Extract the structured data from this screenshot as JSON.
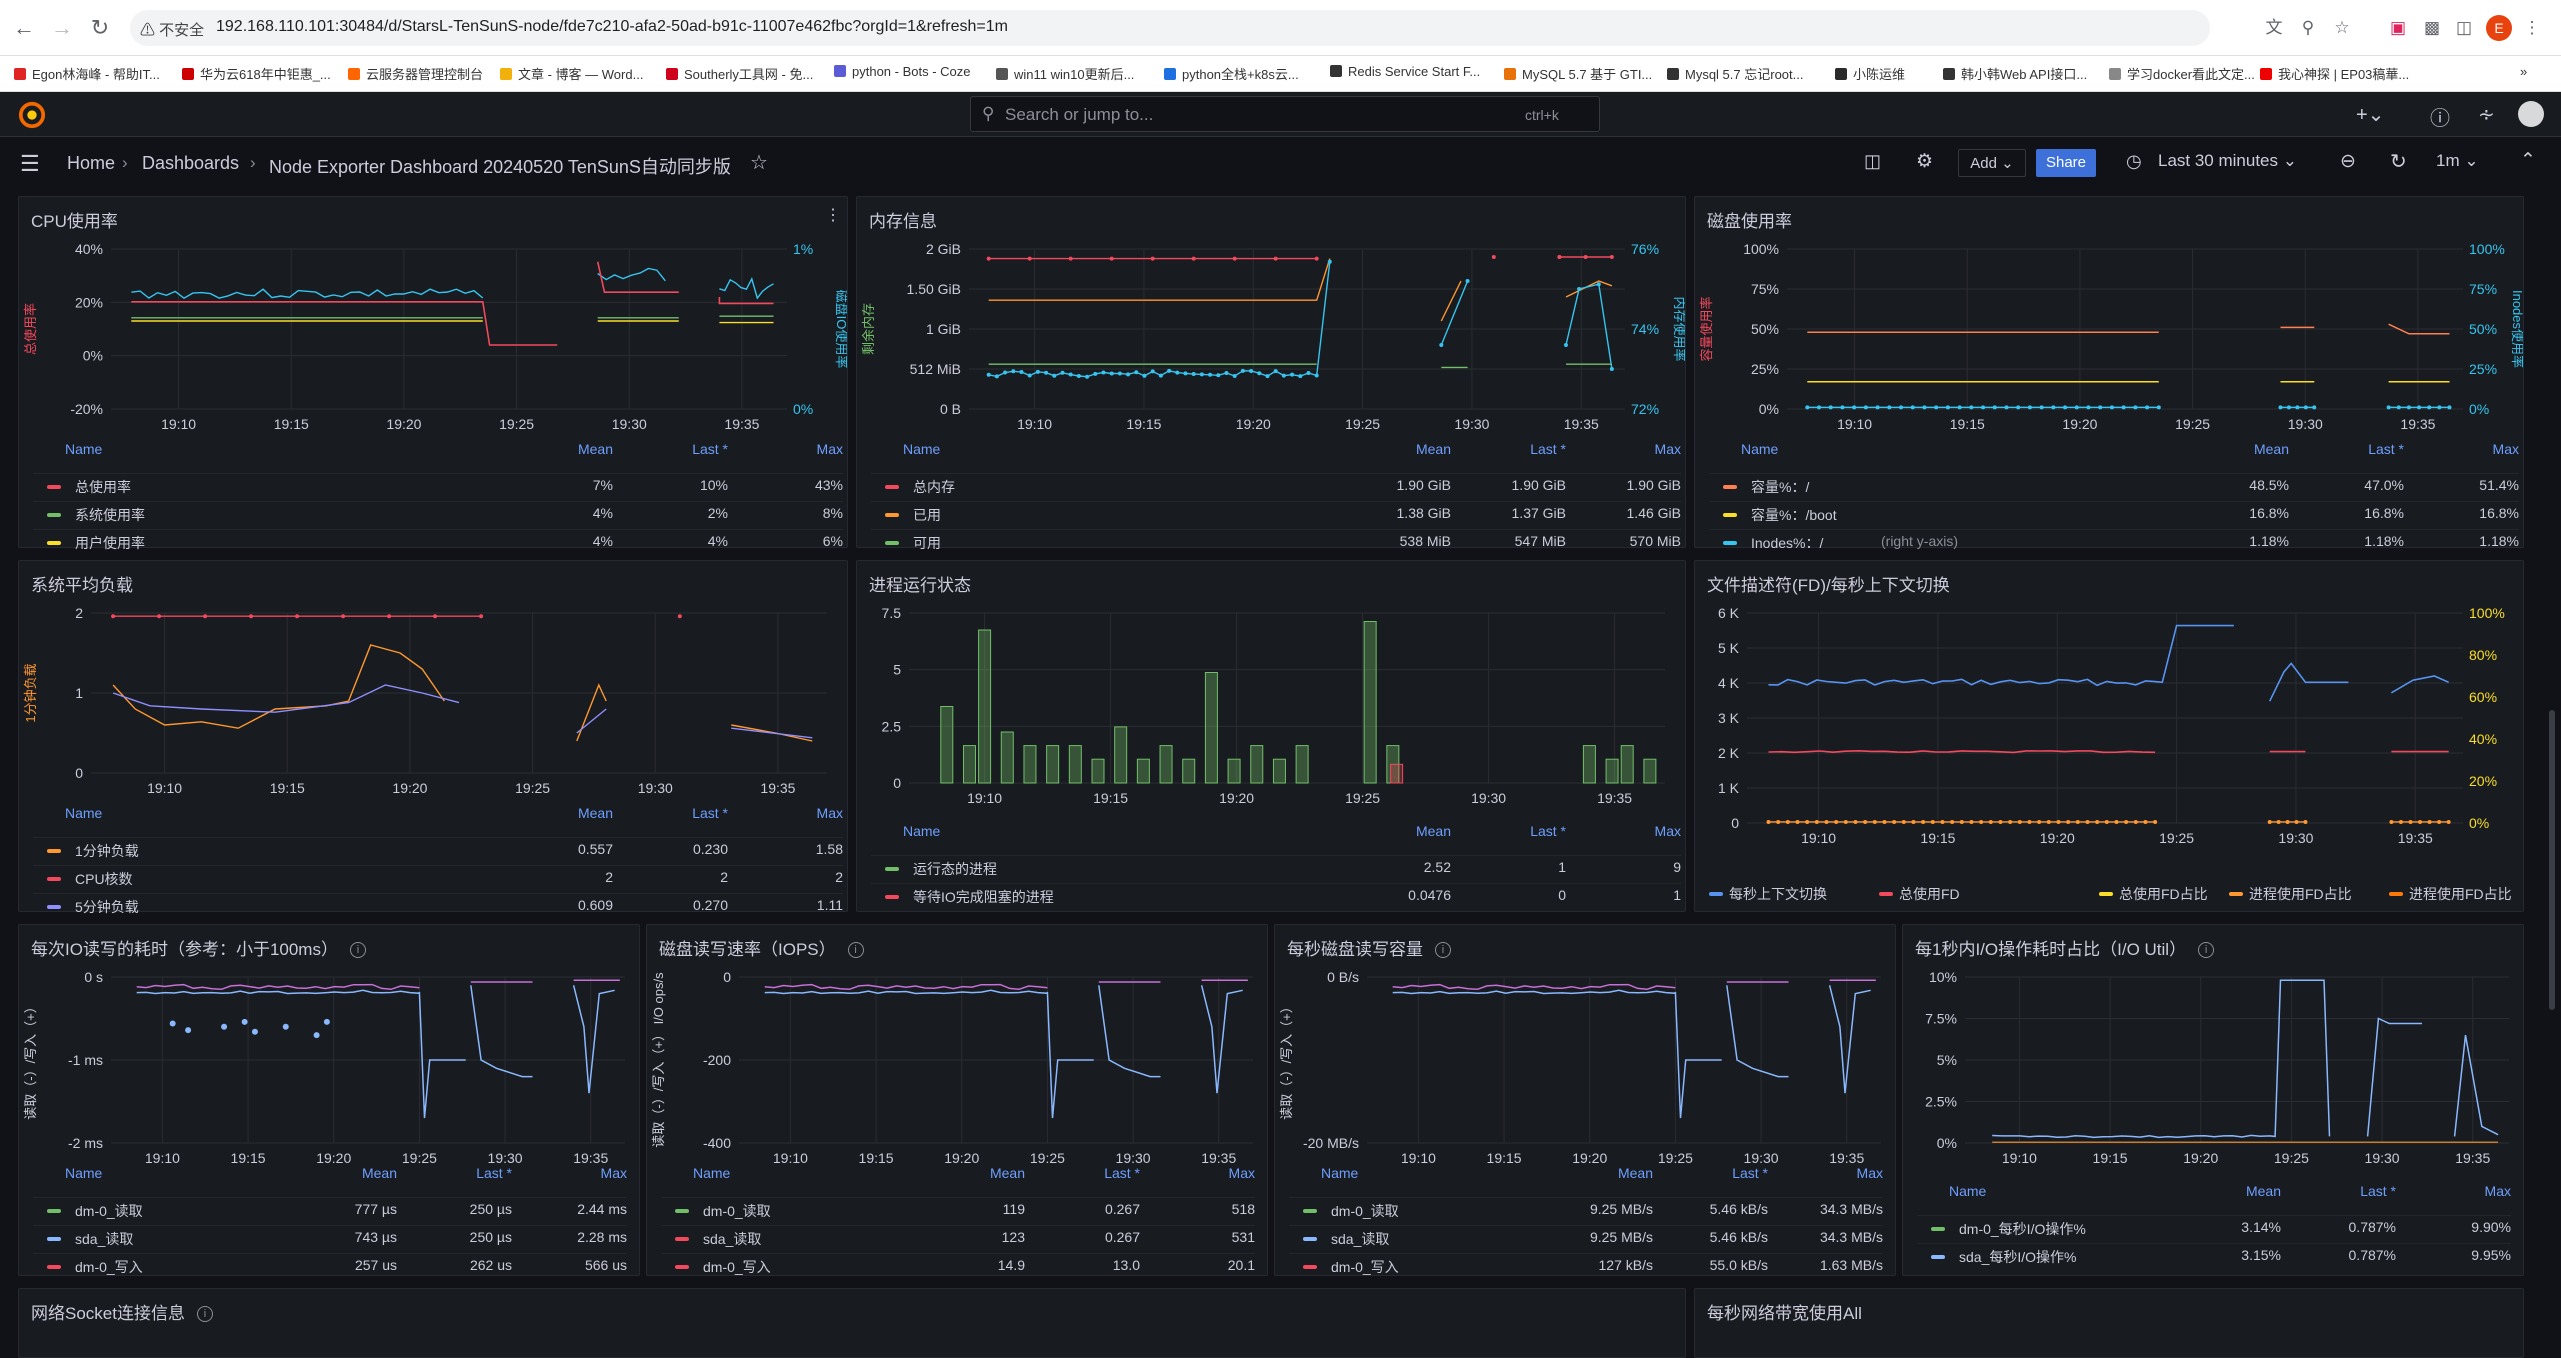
{
  "browser": {
    "insecure_label": "不安全",
    "url": "192.168.110.101:30484/d/StarsL-TenSunS-node/fde7c210-afa2-50ad-b91c-11007e462fbc?orgId=1&refresh=1m",
    "profile_initial": "E"
  },
  "bookmarks": [
    "Egon林海峰 - 帮助IT...",
    "华为云618年中钜惠_...",
    "云服务器管理控制台",
    "文章 - 博客 — Word...",
    "Southerly工具网 - 免...",
    "python - Bots - Coze",
    "win11 win10更新后...",
    "python全栈+k8s云...",
    "Redis Service Start F...",
    "MySQL 5.7 基于 GTI...",
    "Mysql 5.7 忘记root...",
    "小陈运维",
    "韩小韩Web API接口...",
    "学习docker看此文定...",
    "我心神探 | EP03稿華..."
  ],
  "grafana": {
    "search_placeholder": "Search or jump to...",
    "search_shortcut": "ctrl+k",
    "breadcrumb": [
      "Home",
      "Dashboards",
      "Node Exporter Dashboard 20240520 TenSunS自动同步版"
    ],
    "add_label": "Add",
    "share_label": "Share",
    "time_range": "Last 30 minutes",
    "refresh_interval": "1m"
  },
  "panels": {
    "cpu": {
      "title": "CPU使用率",
      "ylabel": "总使用率",
      "y2label": "磁盘IO使用率",
      "y_ticks": [
        "40%",
        "20%",
        "0%",
        "-20%"
      ],
      "y2_ticks": [
        "1%",
        "0%"
      ],
      "x_ticks": [
        "19:10",
        "19:15",
        "19:20",
        "19:25",
        "19:30",
        "19:35"
      ],
      "legend": {
        "cols": [
          "Name",
          "Mean",
          "Last *",
          "Max"
        ],
        "rows": [
          {
            "name": "总使用率",
            "color": "#f2495c",
            "mean": "7%",
            "last": "10%",
            "max": "43%"
          },
          {
            "name": "系统使用率",
            "color": "#73bf69",
            "mean": "4%",
            "last": "2%",
            "max": "8%"
          },
          {
            "name": "用户使用率",
            "color": "#fade2a",
            "mean": "4%",
            "last": "4%",
            "max": "6%"
          }
        ]
      }
    },
    "mem": {
      "title": "内存信息",
      "ylabel": "剩余内存",
      "y2label": "内存使用率",
      "y_ticks": [
        "2 GiB",
        "1.50 GiB",
        "1 GiB",
        "512 MiB",
        "0 B"
      ],
      "y2_ticks": [
        "76%",
        "74%",
        "72%"
      ],
      "x_ticks": [
        "19:10",
        "19:15",
        "19:20",
        "19:25",
        "19:30",
        "19:35"
      ],
      "legend": {
        "cols": [
          "Name",
          "Mean",
          "Last *",
          "Max"
        ],
        "rows": [
          {
            "name": "总内存",
            "color": "#f2495c",
            "mean": "1.90 GiB",
            "last": "1.90 GiB",
            "max": "1.90 GiB"
          },
          {
            "name": "已用",
            "color": "#ff9830",
            "mean": "1.38 GiB",
            "last": "1.37 GiB",
            "max": "1.46 GiB"
          },
          {
            "name": "可用",
            "color": "#73bf69",
            "mean": "538 MiB",
            "last": "547 MiB",
            "max": "570 MiB"
          }
        ]
      }
    },
    "disk": {
      "title": "磁盘使用率",
      "ylabel": "容量使用率",
      "y2label": "Inodes使用率",
      "y_ticks": [
        "100%",
        "75%",
        "50%",
        "25%",
        "0%"
      ],
      "y2_ticks": [
        "100%",
        "75%",
        "50%",
        "25%",
        "0%"
      ],
      "x_ticks": [
        "19:10",
        "19:15",
        "19:20",
        "19:25",
        "19:30",
        "19:35"
      ],
      "legend": {
        "cols": [
          "Name",
          "Mean",
          "Last *",
          "Max"
        ],
        "rows": [
          {
            "name": "容量%：/",
            "color": "#ff7f50",
            "mean": "48.5%",
            "last": "47.0%",
            "max": "51.4%"
          },
          {
            "name": "容量%：/boot",
            "color": "#fade2a",
            "mean": "16.8%",
            "last": "16.8%",
            "max": "16.8%"
          },
          {
            "name": "Inodes%：/",
            "suffix": "(right y-axis)",
            "color": "#36c5f0",
            "mean": "1.18%",
            "last": "1.18%",
            "max": "1.18%"
          }
        ]
      }
    },
    "load": {
      "title": "系统平均负载",
      "ylabel": "1分钟负载",
      "y_ticks": [
        "2",
        "1",
        "0"
      ],
      "x_ticks": [
        "19:10",
        "19:15",
        "19:20",
        "19:25",
        "19:30",
        "19:35"
      ],
      "legend": {
        "cols": [
          "Name",
          "Mean",
          "Last *",
          "Max"
        ],
        "rows": [
          {
            "name": "1分钟负载",
            "color": "#ff9830",
            "mean": "0.557",
            "last": "0.230",
            "max": "1.58"
          },
          {
            "name": "CPU核数",
            "color": "#f2495c",
            "mean": "2",
            "last": "2",
            "max": "2"
          },
          {
            "name": "5分钟负载",
            "color": "#8f8fff",
            "mean": "0.609",
            "last": "0.270",
            "max": "1.11"
          }
        ]
      }
    },
    "proc": {
      "title": "进程运行状态",
      "y_ticks": [
        "7.5",
        "5",
        "2.5",
        "0"
      ],
      "x_ticks": [
        "19:10",
        "19:15",
        "19:20",
        "19:25",
        "19:30",
        "19:35"
      ],
      "legend": {
        "cols": [
          "Name",
          "Mean",
          "Last *",
          "Max"
        ],
        "rows": [
          {
            "name": "运行态的进程",
            "color": "#73bf69",
            "mean": "2.52",
            "last": "1",
            "max": "9"
          },
          {
            "name": "等待IO完成阻塞的进程",
            "color": "#f2495c",
            "mean": "0.0476",
            "last": "0",
            "max": "1"
          }
        ]
      }
    },
    "fd": {
      "title": "文件描述符(FD)/每秒上下文切换",
      "y_ticks": [
        "6 K",
        "5 K",
        "4 K",
        "3 K",
        "2 K",
        "1 K",
        "0"
      ],
      "y2_ticks": [
        "100%",
        "80%",
        "60%",
        "40%",
        "20%",
        "0%"
      ],
      "x_ticks": [
        "19:10",
        "19:15",
        "19:20",
        "19:25",
        "19:30",
        "19:35"
      ],
      "legend_items": [
        {
          "name": "每秒上下文切换",
          "color": "#5794f2"
        },
        {
          "name": "总使用FD",
          "color": "#f2495c"
        },
        {
          "name": "总使用FD占比",
          "color": "#fade2a"
        },
        {
          "name": "进程使用FD占比",
          "color": "#ff9830"
        },
        {
          "name": "进程使用FD占比",
          "color": "#ff780a"
        }
      ]
    },
    "iolat": {
      "title": "每次IO读写的耗时（参考：小于100ms）",
      "ylabel": "读取（-）/写入（+）",
      "y_ticks": [
        "0 s",
        "-1 ms",
        "-2 ms"
      ],
      "x_ticks": [
        "19:10",
        "19:15",
        "19:20",
        "19:25",
        "19:30",
        "19:35"
      ],
      "legend": {
        "cols": [
          "Name",
          "Mean",
          "Last *",
          "Max"
        ],
        "rows": [
          {
            "name": "dm-0_读取",
            "color": "#73bf69",
            "mean": "777 µs",
            "last": "250 µs",
            "max": "2.44 ms"
          },
          {
            "name": "sda_读取",
            "color": "#8ab8ff",
            "mean": "743 µs",
            "last": "250 µs",
            "max": "2.28 ms"
          },
          {
            "name": "dm-0_写入",
            "color": "#f2495c",
            "mean": "257 us",
            "last": "262 us",
            "max": "566 us"
          }
        ]
      }
    },
    "iops": {
      "title": "磁盘读写速率（IOPS）",
      "ylabel": "读取（-）/写入（+） I/O ops/s",
      "y_ticks": [
        "0",
        "-200",
        "-400"
      ],
      "x_ticks": [
        "19:10",
        "19:15",
        "19:20",
        "19:25",
        "19:30",
        "19:35"
      ],
      "legend": {
        "cols": [
          "Name",
          "Mean",
          "Last *",
          "Max"
        ],
        "rows": [
          {
            "name": "dm-0_读取",
            "color": "#73bf69",
            "mean": "119",
            "last": "0.267",
            "max": "518"
          },
          {
            "name": "sda_读取",
            "color": "#f2495c",
            "mean": "123",
            "last": "0.267",
            "max": "531"
          },
          {
            "name": "dm-0_写入",
            "color": "#f2495c",
            "mean": "14.9",
            "last": "13.0",
            "max": "20.1"
          }
        ]
      }
    },
    "bw": {
      "title": "每秒磁盘读写容量",
      "ylabel": "读取（-）/写入（+）",
      "y_ticks": [
        "0 B/s",
        "-20 MB/s"
      ],
      "x_ticks": [
        "19:10",
        "19:15",
        "19:20",
        "19:25",
        "19:30",
        "19:35"
      ],
      "legend": {
        "cols": [
          "Name",
          "Mean",
          "Last *",
          "Max"
        ],
        "rows": [
          {
            "name": "dm-0_读取",
            "color": "#73bf69",
            "mean": "9.25 MB/s",
            "last": "5.46 kB/s",
            "max": "34.3 MB/s"
          },
          {
            "name": "sda_读取",
            "color": "#8ab8ff",
            "mean": "9.25 MB/s",
            "last": "5.46 kB/s",
            "max": "34.3 MB/s"
          },
          {
            "name": "dm-0_写入",
            "color": "#f2495c",
            "mean": "127 kB/s",
            "last": "55.0 kB/s",
            "max": "1.63 MB/s"
          }
        ]
      }
    },
    "util": {
      "title": "每1秒内I/O操作耗时占比（I/O Util）",
      "y_ticks": [
        "10%",
        "7.5%",
        "5%",
        "2.5%",
        "0%"
      ],
      "x_ticks": [
        "19:10",
        "19:15",
        "19:20",
        "19:25",
        "19:30",
        "19:35"
      ],
      "legend": {
        "cols": [
          "Name",
          "Mean",
          "Last *",
          "Max"
        ],
        "rows": [
          {
            "name": "dm-0_每秒I/O操作%",
            "color": "#73bf69",
            "mean": "3.14%",
            "last": "0.787%",
            "max": "9.90%"
          },
          {
            "name": "sda_每秒I/O操作%",
            "color": "#8ab8ff",
            "mean": "3.15%",
            "last": "0.787%",
            "max": "9.95%"
          }
        ]
      }
    },
    "net": {
      "title": "网络Socket连接信息"
    },
    "bwall": {
      "title": "每秒网络带宽使用All"
    }
  }
}
